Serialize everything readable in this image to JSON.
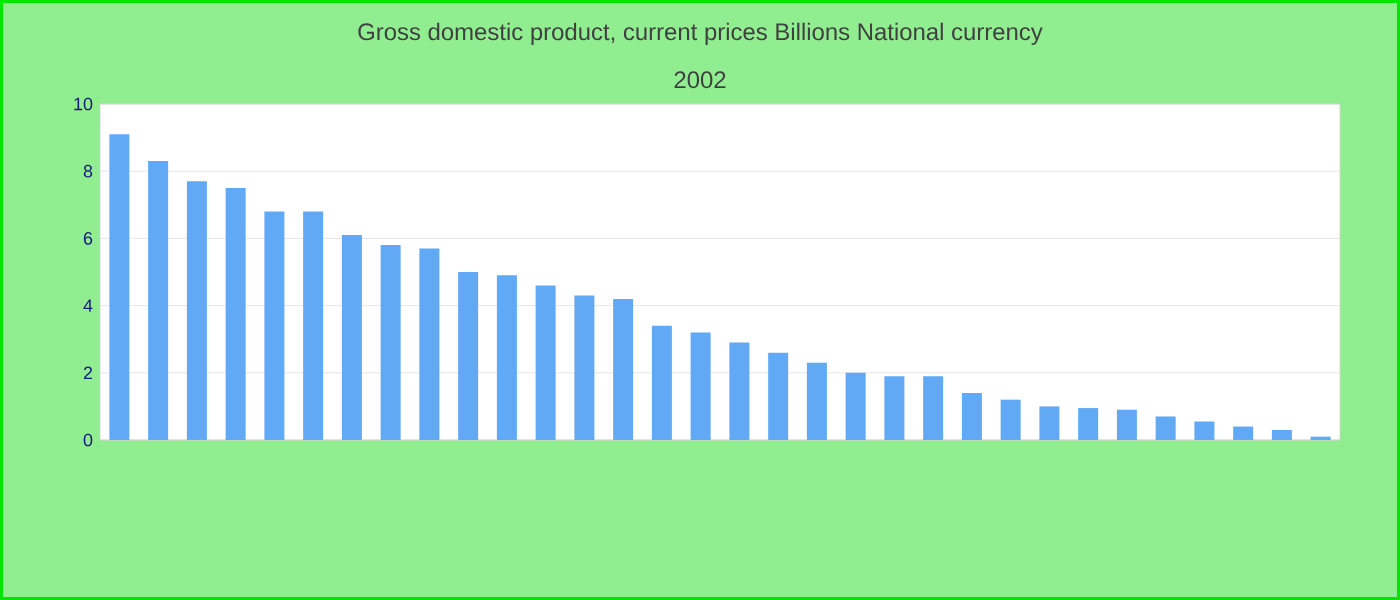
{
  "chart_data": {
    "type": "bar",
    "title": "Gross domestic product, current prices Billions National currency",
    "subtitle": "2002",
    "categories": [
      null,
      null,
      null,
      null,
      null,
      null,
      null,
      null,
      null,
      null,
      null,
      null,
      null,
      null,
      null,
      null,
      null,
      null,
      null,
      null,
      null,
      null,
      null,
      null,
      null,
      null,
      null,
      null,
      null,
      null,
      null,
      null
    ],
    "values": [
      9.1,
      8.3,
      7.7,
      7.5,
      6.8,
      6.8,
      6.1,
      5.8,
      5.7,
      5.0,
      4.9,
      4.6,
      4.3,
      4.2,
      3.4,
      3.2,
      2.9,
      2.6,
      2.3,
      2.0,
      1.9,
      1.9,
      1.4,
      1.2,
      1.0,
      0.95,
      0.9,
      0.7,
      0.55,
      0.4,
      0.3,
      0.1
    ],
    "color": "#61a9f4",
    "ylim": [
      0,
      10
    ],
    "yticks": [
      0,
      2,
      4,
      6,
      8,
      10
    ],
    "grid": "y"
  }
}
